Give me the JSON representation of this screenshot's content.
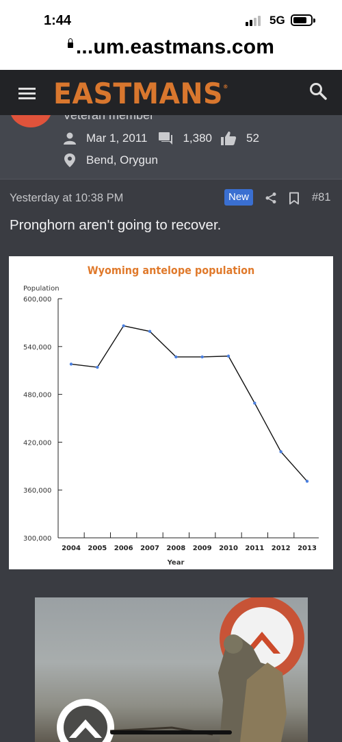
{
  "status_bar": {
    "time": "1:44",
    "network": "5G"
  },
  "browser": {
    "url": "...um.eastmans.com"
  },
  "header": {
    "logo": "EASTMANS"
  },
  "member": {
    "title": "Veteran member",
    "joined": "Mar 1, 2011",
    "messages": "1,380",
    "reactions": "52",
    "location": "Bend, Orygun",
    "avatar_color": "#e0533b"
  },
  "post": {
    "time": "Yesterday at 10:38 PM",
    "badge": "New",
    "number": "#81",
    "text": "Pronghorn aren't going to recover."
  },
  "chart_data": {
    "type": "line",
    "title": "Wyoming antelope population",
    "ylabel": "Population",
    "xlabel": "Year",
    "x": [
      "2004",
      "2005",
      "2006",
      "2007",
      "2008",
      "2009",
      "2010",
      "2011",
      "2012",
      "2013"
    ],
    "values": [
      518000,
      514000,
      566000,
      559000,
      527000,
      527000,
      528000,
      469000,
      408000,
      371000
    ],
    "ylim": [
      300000,
      600000
    ],
    "yticks": [
      "300,000",
      "360,000",
      "420,000",
      "480,000",
      "540,000",
      "600,000"
    ],
    "ytick_values": [
      300000,
      360000,
      420000,
      480000,
      540000,
      600000
    ],
    "grid": false,
    "line_color": "#111111",
    "marker_color": "#4a7fe0",
    "title_color": "#e07a2c"
  },
  "colors": {
    "accent": "#d9772e",
    "badge_new": "#3a6fd1",
    "page_bg": "#3a3c42"
  }
}
